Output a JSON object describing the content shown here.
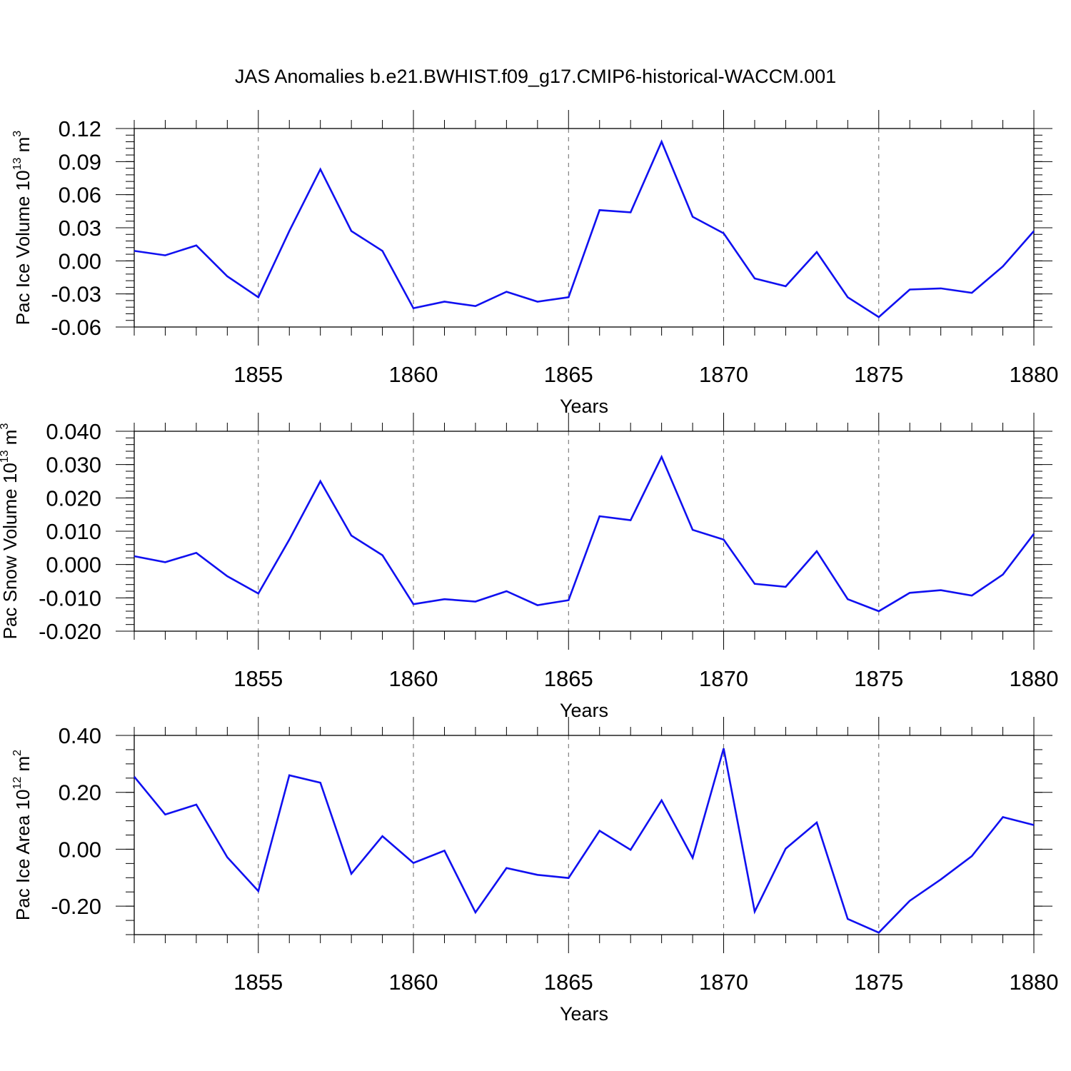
{
  "figure": {
    "title": "JAS Anomalies b.e21.BWHIST.f09_g17.CMIP6-historical-WACCM.001",
    "line_color": "#1010f0",
    "axis_color": "#000000",
    "grid_color": "#666666"
  },
  "chart_data": [
    {
      "type": "line",
      "ylabel": {
        "text": "Pac Ice Volume 10",
        "sup1": "13",
        "unit": " m",
        "sup2": "3"
      },
      "xlabel": "Years",
      "xlim": [
        1851,
        1880
      ],
      "ylim": [
        -0.06,
        0.12
      ],
      "yticks": [
        -0.06,
        -0.03,
        0.0,
        0.03,
        0.06,
        0.09,
        0.12
      ],
      "ytick_labels": [
        "-0.06",
        "-0.03",
        "0.00",
        "0.03",
        "0.06",
        "0.09",
        "0.12"
      ],
      "xticks": [
        1855,
        1860,
        1865,
        1870,
        1875,
        1880
      ],
      "xtick_labels": [
        "1855",
        "1860",
        "1865",
        "1870",
        "1875",
        "1880"
      ],
      "x": [
        1851,
        1852,
        1853,
        1854,
        1855,
        1856,
        1857,
        1858,
        1859,
        1860,
        1861,
        1862,
        1863,
        1864,
        1865,
        1866,
        1867,
        1868,
        1869,
        1870,
        1871,
        1872,
        1873,
        1874,
        1875,
        1876,
        1877,
        1878,
        1879,
        1880
      ],
      "values": [
        0.009,
        0.005,
        0.014,
        -0.014,
        -0.033,
        0.027,
        0.083,
        0.027,
        0.009,
        -0.043,
        -0.037,
        -0.041,
        -0.028,
        -0.037,
        -0.033,
        0.046,
        0.044,
        0.108,
        0.04,
        0.025,
        -0.016,
        -0.023,
        0.008,
        -0.033,
        -0.051,
        -0.026,
        -0.025,
        -0.029,
        -0.005,
        0.027
      ]
    },
    {
      "type": "line",
      "ylabel": {
        "text": "Pac Snow Volume 10",
        "sup1": "13",
        "unit": " m",
        "sup2": "3"
      },
      "xlabel": "Years",
      "xlim": [
        1851,
        1880
      ],
      "ylim": [
        -0.02,
        0.04
      ],
      "yticks": [
        -0.02,
        -0.01,
        0.0,
        0.01,
        0.02,
        0.03,
        0.04
      ],
      "ytick_labels": [
        "-0.020",
        "-0.010",
        "0.000",
        "0.010",
        "0.020",
        "0.030",
        "0.040"
      ],
      "xticks": [
        1855,
        1860,
        1865,
        1870,
        1875,
        1880
      ],
      "xtick_labels": [
        "1855",
        "1860",
        "1865",
        "1870",
        "1875",
        "1880"
      ],
      "x": [
        1851,
        1852,
        1853,
        1854,
        1855,
        1856,
        1857,
        1858,
        1859,
        1860,
        1861,
        1862,
        1863,
        1864,
        1865,
        1866,
        1867,
        1868,
        1869,
        1870,
        1871,
        1872,
        1873,
        1874,
        1875,
        1876,
        1877,
        1878,
        1879,
        1880
      ],
      "values": [
        0.0025,
        0.0007,
        0.0035,
        -0.0035,
        -0.0087,
        0.0075,
        0.025,
        0.0087,
        0.0028,
        -0.0119,
        -0.0104,
        -0.0111,
        -0.008,
        -0.0122,
        -0.0107,
        0.0145,
        0.0133,
        0.0323,
        0.0104,
        0.0075,
        -0.0058,
        -0.0067,
        0.004,
        -0.0104,
        -0.014,
        -0.0085,
        -0.0077,
        -0.0093,
        -0.003,
        0.0092
      ]
    },
    {
      "type": "line",
      "ylabel": {
        "text": "Pac Ice Area 10",
        "sup1": "12",
        "unit": " m",
        "sup2": "2"
      },
      "xlabel": "Years",
      "xlim": [
        1851,
        1880
      ],
      "ylim": [
        -0.3,
        0.4
      ],
      "yticks": [
        -0.2,
        0.0,
        0.2,
        0.4
      ],
      "ytick_labels": [
        "-0.20",
        "0.00",
        "0.20",
        "0.40"
      ],
      "minor_step": 0.05,
      "xticks": [
        1855,
        1860,
        1865,
        1870,
        1875,
        1880
      ],
      "xtick_labels": [
        "1855",
        "1860",
        "1865",
        "1870",
        "1875",
        "1880"
      ],
      "x": [
        1851,
        1852,
        1853,
        1854,
        1855,
        1856,
        1857,
        1858,
        1859,
        1860,
        1861,
        1862,
        1863,
        1864,
        1865,
        1866,
        1867,
        1868,
        1869,
        1870,
        1871,
        1872,
        1873,
        1874,
        1875,
        1876,
        1877,
        1878,
        1879,
        1880
      ],
      "values": [
        0.255,
        0.122,
        0.157,
        -0.028,
        -0.147,
        0.26,
        0.234,
        -0.086,
        0.046,
        -0.048,
        -0.005,
        -0.222,
        -0.066,
        -0.09,
        -0.101,
        0.065,
        -0.002,
        0.172,
        -0.03,
        0.354,
        -0.219,
        0.002,
        0.094,
        -0.245,
        -0.293,
        -0.181,
        -0.106,
        -0.024,
        0.113,
        0.085
      ]
    }
  ]
}
